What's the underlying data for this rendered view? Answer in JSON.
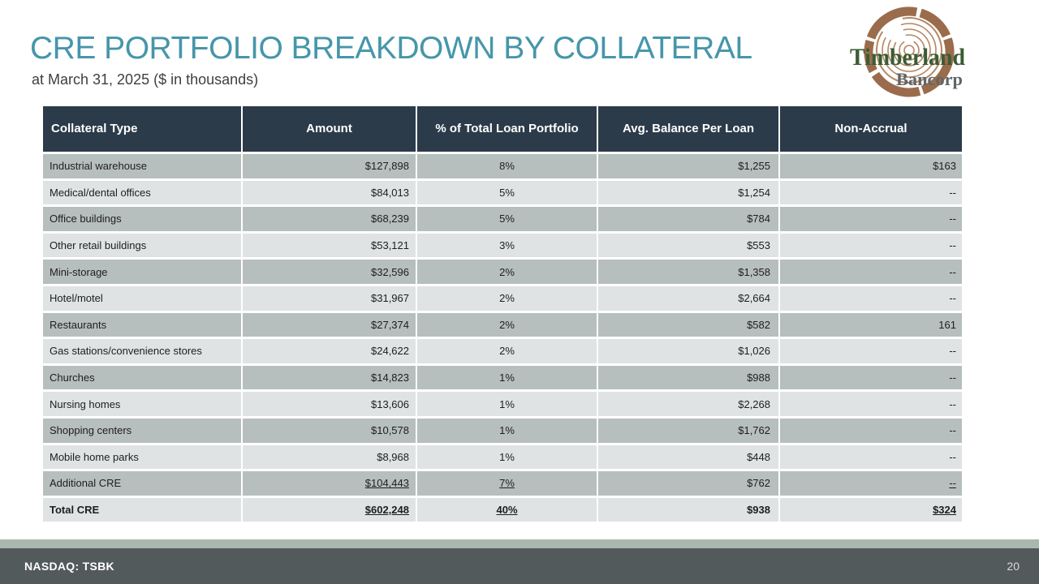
{
  "slide": {
    "title": "CRE PORTFOLIO BREAKDOWN BY COLLATERAL",
    "subtitle": "at March 31, 2025 ($ in thousands)",
    "footer_ticker": "NASDAQ: TSBK",
    "page_number": "20"
  },
  "logo": {
    "name": "Timberland Bancorp",
    "line1": "Timberland",
    "line2": "Bancorp"
  },
  "colors": {
    "title_teal": "#4696aa",
    "table_header_bg": "#2b3b49",
    "row_dark": "#b7bebe",
    "row_light": "#dfe3e3",
    "footer_accent": "#a9b8af",
    "footer_bar": "#535a5b",
    "logo_brown": "#9a6c4c",
    "logo_ring": "#b58763",
    "logo_green": "#3a5c33",
    "logo_gray": "#5f6568"
  },
  "table": {
    "columns": [
      "Collateral Type",
      "Amount",
      "% of Total Loan Portfolio",
      "Avg. Balance Per Loan",
      "Non-Accrual"
    ],
    "rows": [
      {
        "collateral": "Industrial warehouse",
        "amount": "$127,898",
        "pct": "8%",
        "avg": "$1,255",
        "nonaccrual": "$163"
      },
      {
        "collateral": "Medical/dental offices",
        "amount": "$84,013",
        "pct": "5%",
        "avg": "$1,254",
        "nonaccrual": "--"
      },
      {
        "collateral": "Office buildings",
        "amount": "$68,239",
        "pct": "5%",
        "avg": "$784",
        "nonaccrual": "--"
      },
      {
        "collateral": "Other retail buildings",
        "amount": "$53,121",
        "pct": "3%",
        "avg": "$553",
        "nonaccrual": "--"
      },
      {
        "collateral": "Mini-storage",
        "amount": "$32,596",
        "pct": "2%",
        "avg": "$1,358",
        "nonaccrual": "--"
      },
      {
        "collateral": "Hotel/motel",
        "amount": "$31,967",
        "pct": "2%",
        "avg": "$2,664",
        "nonaccrual": "--"
      },
      {
        "collateral": "Restaurants",
        "amount": "$27,374",
        "pct": "2%",
        "avg": "$582",
        "nonaccrual": "161"
      },
      {
        "collateral": "Gas stations/convenience stores",
        "amount": "$24,622",
        "pct": "2%",
        "avg": "$1,026",
        "nonaccrual": "--"
      },
      {
        "collateral": "Churches",
        "amount": "$14,823",
        "pct": "1%",
        "avg": "$988",
        "nonaccrual": "--"
      },
      {
        "collateral": "Nursing homes",
        "amount": "$13,606",
        "pct": "1%",
        "avg": "$2,268",
        "nonaccrual": "--"
      },
      {
        "collateral": "Shopping centers",
        "amount": "$10,578",
        "pct": "1%",
        "avg": "$1,762",
        "nonaccrual": "--"
      },
      {
        "collateral": "Mobile home parks",
        "amount": "$8,968",
        "pct": "1%",
        "avg": "$448",
        "nonaccrual": "--"
      },
      {
        "collateral": "Additional CRE",
        "amount": "$104,443",
        "pct": "7%",
        "avg": "$762",
        "nonaccrual": "--",
        "underline": true
      },
      {
        "collateral": "Total CRE",
        "amount": "$602,248",
        "pct": "40%",
        "avg": "$938",
        "nonaccrual": "$324",
        "underline": true,
        "bold": true
      }
    ]
  }
}
